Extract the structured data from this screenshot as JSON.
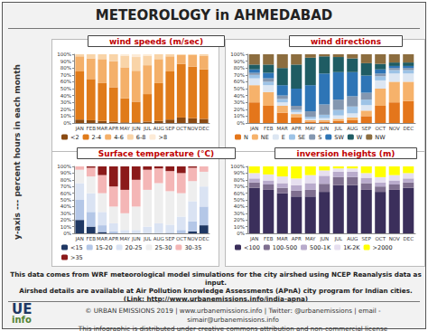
{
  "header": {
    "title": "METEOROLOGY in AHMEDABAD",
    "y_axis_note": "y-axis --- percent hours in each month"
  },
  "footer": {
    "lines": [
      "This data comes from WRF meteorological model simulations for the city airshed using NCEP Reanalysis data as input.",
      "Airshed details are available at Air Pollution knowledge Assessments (APnA) city program for Indian cities.",
      "(Link:  http://www.urbanemissions.info/india-apna)"
    ],
    "logo": [
      "UE",
      "info"
    ],
    "copyright": [
      "© URBAN EMISSIONS 2019 | www.urbanemissions.info | Twitter: @urbanemissions | email - simair@urbanemissions.info",
      "This infographic is distributed under creative commons attribution and non-commercial license"
    ]
  },
  "chart_data": [
    {
      "type": "bar",
      "title": "wind speeds (m/sec)",
      "stacked": true,
      "grid": false,
      "legend": "bottom",
      "categories": [
        "JAN",
        "FEB",
        "MAR",
        "APR",
        "MAY",
        "JUN",
        "JUL",
        "AUG",
        "SEP",
        "OCT",
        "NOV",
        "DEC"
      ],
      "ylim": [
        0,
        100
      ],
      "yticks": [
        {
          "value": 0,
          "label": "0%"
        },
        {
          "value": 10,
          "label": "10%"
        },
        {
          "value": 20,
          "label": "20%"
        },
        {
          "value": 30,
          "label": "30%"
        },
        {
          "value": 40,
          "label": "40%"
        },
        {
          "value": 50,
          "label": "50%"
        },
        {
          "value": 60,
          "label": "60%"
        },
        {
          "value": 70,
          "label": "70%"
        },
        {
          "value": 80,
          "label": "80%"
        },
        {
          "value": 90,
          "label": "90%"
        },
        {
          "value": 100,
          "label": "100%"
        }
      ],
      "series": [
        {
          "name": "<2",
          "color": "#8a4a12",
          "values": [
            5,
            4,
            3,
            2,
            1,
            1,
            2,
            3,
            5,
            8,
            7,
            6
          ]
        },
        {
          "name": "2-4",
          "color": "#e07b1a",
          "values": [
            70,
            60,
            55,
            50,
            35,
            30,
            40,
            55,
            70,
            78,
            75,
            72
          ]
        },
        {
          "name": "4-6",
          "color": "#f4b06a",
          "values": [
            22,
            30,
            35,
            38,
            45,
            45,
            42,
            35,
            22,
            13,
            17,
            20
          ]
        },
        {
          "name": "6-8",
          "color": "#f9d4a8",
          "values": [
            3,
            6,
            7,
            10,
            17,
            20,
            14,
            7,
            3,
            1,
            1,
            2
          ]
        },
        {
          "name": ">8",
          "color": "#fdebd6",
          "values": [
            0,
            0,
            0,
            0,
            2,
            4,
            2,
            0,
            0,
            0,
            0,
            0
          ]
        }
      ]
    },
    {
      "type": "bar",
      "title": "wind directions",
      "stacked": true,
      "grid": false,
      "legend": "bottom",
      "categories": [
        "JAN",
        "FEB",
        "MAR",
        "APR",
        "MAY",
        "JUN",
        "JUL",
        "AUG",
        "SEP",
        "OCT",
        "NOV",
        "DEC"
      ],
      "ylim": [
        0,
        100
      ],
      "yticks": [
        {
          "value": 0,
          "label": "0%"
        },
        {
          "value": 10,
          "label": "10%"
        },
        {
          "value": 20,
          "label": "20%"
        },
        {
          "value": 30,
          "label": "30%"
        },
        {
          "value": 40,
          "label": "40%"
        },
        {
          "value": 50,
          "label": "50%"
        },
        {
          "value": 60,
          "label": "60%"
        },
        {
          "value": 70,
          "label": "70%"
        },
        {
          "value": 80,
          "label": "80%"
        },
        {
          "value": 90,
          "label": "90%"
        },
        {
          "value": 100,
          "label": "100%"
        }
      ],
      "series": [
        {
          "name": "N",
          "color": "#e4761b",
          "values": [
            30,
            25,
            15,
            8,
            2,
            2,
            3,
            4,
            10,
            25,
            30,
            32
          ]
        },
        {
          "name": "NE",
          "color": "#f6b26b",
          "values": [
            25,
            20,
            10,
            5,
            2,
            2,
            3,
            4,
            8,
            25,
            30,
            28
          ]
        },
        {
          "name": "E",
          "color": "#dce6f2",
          "values": [
            10,
            10,
            5,
            3,
            2,
            3,
            5,
            6,
            8,
            12,
            12,
            12
          ]
        },
        {
          "name": "SE",
          "color": "#9dc3e6",
          "values": [
            5,
            5,
            5,
            3,
            3,
            5,
            8,
            10,
            8,
            6,
            5,
            5
          ]
        },
        {
          "name": "S",
          "color": "#8497b0",
          "values": [
            3,
            5,
            5,
            6,
            8,
            15,
            15,
            15,
            10,
            4,
            3,
            3
          ]
        },
        {
          "name": "SW",
          "color": "#2e75b6",
          "values": [
            5,
            8,
            15,
            25,
            38,
            45,
            40,
            35,
            25,
            6,
            3,
            3
          ]
        },
        {
          "name": "W",
          "color": "#1f5c63",
          "values": [
            7,
            12,
            25,
            35,
            40,
            25,
            22,
            20,
            18,
            8,
            5,
            5
          ]
        },
        {
          "name": "NW",
          "color": "#8c6d3f",
          "values": [
            15,
            15,
            20,
            15,
            5,
            3,
            4,
            6,
            13,
            14,
            12,
            12
          ]
        }
      ]
    },
    {
      "type": "bar",
      "title": "Surface temperature (°C)",
      "stacked": true,
      "grid": false,
      "legend": "bottom",
      "categories": [
        "JAN",
        "FEB",
        "MAR",
        "APR",
        "MAY",
        "JUN",
        "JUL",
        "AUG",
        "SEP",
        "OCT",
        "NOV",
        "DEC"
      ],
      "ylim": [
        0,
        100
      ],
      "yticks": [
        {
          "value": 0,
          "label": "0%"
        },
        {
          "value": 10,
          "label": "10%"
        },
        {
          "value": 20,
          "label": "20%"
        },
        {
          "value": 30,
          "label": "30%"
        },
        {
          "value": 40,
          "label": "40%"
        },
        {
          "value": 50,
          "label": "50%"
        },
        {
          "value": 60,
          "label": "60%"
        },
        {
          "value": 70,
          "label": "70%"
        },
        {
          "value": 80,
          "label": "80%"
        },
        {
          "value": 90,
          "label": "90%"
        },
        {
          "value": 100,
          "label": "100%"
        }
      ],
      "series": [
        {
          "name": "<15",
          "color": "#1f3864",
          "values": [
            20,
            10,
            2,
            0,
            0,
            0,
            0,
            0,
            0,
            0,
            3,
            12
          ]
        },
        {
          "name": "15-20",
          "color": "#b4c7e7",
          "values": [
            30,
            22,
            10,
            3,
            0,
            0,
            0,
            0,
            1,
            5,
            15,
            28
          ]
        },
        {
          "name": "20-25",
          "color": "#dae3f3",
          "values": [
            25,
            28,
            20,
            12,
            5,
            5,
            10,
            15,
            12,
            20,
            30,
            30
          ]
        },
        {
          "name": "25-30",
          "color": "#eeeeee",
          "values": [
            20,
            25,
            28,
            25,
            25,
            35,
            55,
            60,
            50,
            35,
            30,
            22
          ]
        },
        {
          "name": "30-35",
          "color": "#f4b6b6",
          "values": [
            5,
            13,
            27,
            30,
            35,
            40,
            30,
            22,
            30,
            30,
            20,
            8
          ]
        },
        {
          "name": ">35",
          "color": "#8b1a1a",
          "values": [
            0,
            2,
            13,
            30,
            35,
            20,
            5,
            3,
            7,
            10,
            2,
            0
          ]
        }
      ]
    },
    {
      "type": "bar",
      "title": "inversion heights (m)",
      "stacked": true,
      "grid": false,
      "legend": "bottom",
      "categories": [
        "JAN",
        "FEB",
        "MAR",
        "APR",
        "MAY",
        "JUN",
        "JUL",
        "AUG",
        "SEP",
        "OCT",
        "NOV",
        "DEC"
      ],
      "ylim": [
        0,
        100
      ],
      "yticks": [
        {
          "value": 0,
          "label": "0%"
        },
        {
          "value": 10,
          "label": "10%"
        },
        {
          "value": 20,
          "label": "20%"
        },
        {
          "value": 30,
          "label": "30%"
        },
        {
          "value": 40,
          "label": "40%"
        },
        {
          "value": 50,
          "label": "50%"
        },
        {
          "value": 60,
          "label": "60%"
        },
        {
          "value": 70,
          "label": "70%"
        },
        {
          "value": 80,
          "label": "80%"
        },
        {
          "value": 90,
          "label": "90%"
        },
        {
          "value": 100,
          "label": "100%"
        }
      ],
      "series": [
        {
          "name": "<100",
          "color": "#3b2f5b",
          "values": [
            68,
            65,
            60,
            55,
            55,
            62,
            72,
            72,
            65,
            62,
            65,
            68
          ]
        },
        {
          "name": "100-500",
          "color": "#7f6f8f",
          "values": [
            8,
            8,
            8,
            9,
            10,
            12,
            12,
            12,
            10,
            8,
            8,
            8
          ]
        },
        {
          "name": "500-1K",
          "color": "#b9abcc",
          "values": [
            6,
            6,
            7,
            8,
            10,
            12,
            8,
            8,
            8,
            6,
            6,
            6
          ]
        },
        {
          "name": "1K-2K",
          "color": "#e6dff0",
          "values": [
            8,
            9,
            10,
            10,
            12,
            8,
            5,
            5,
            7,
            8,
            8,
            8
          ]
        },
        {
          "name": ">2000",
          "color": "#ffff00",
          "values": [
            10,
            12,
            15,
            18,
            13,
            6,
            3,
            3,
            10,
            16,
            13,
            10
          ]
        }
      ]
    }
  ]
}
